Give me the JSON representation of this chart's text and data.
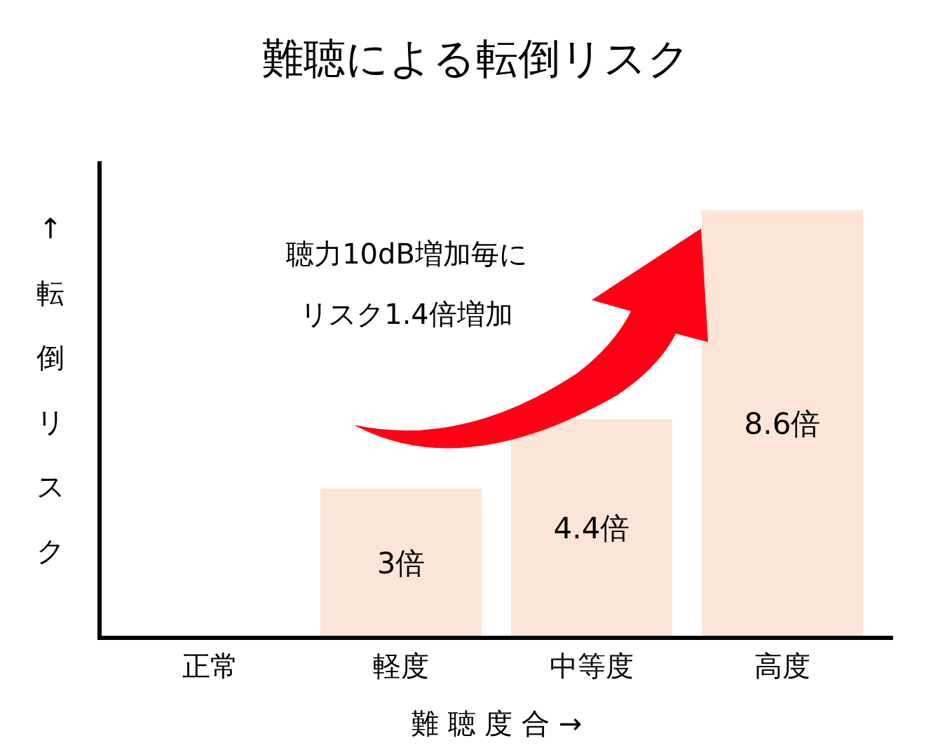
{
  "chart_data": {
    "type": "bar",
    "title": "難聴による転倒リスク",
    "xlabel": "難 聴 度 合 →",
    "ylabel": "↑ 転倒リスク",
    "categories": [
      "正常",
      "軽度",
      "中等度",
      "高度"
    ],
    "values": [
      null,
      3,
      4.4,
      8.6
    ],
    "value_labels": [
      null,
      "3倍",
      "4.4倍",
      "8.6倍"
    ],
    "color": "#fce4d6",
    "annotations": [
      "聴力10dB増加毎に",
      "リスク1.4倍増加"
    ]
  }
}
